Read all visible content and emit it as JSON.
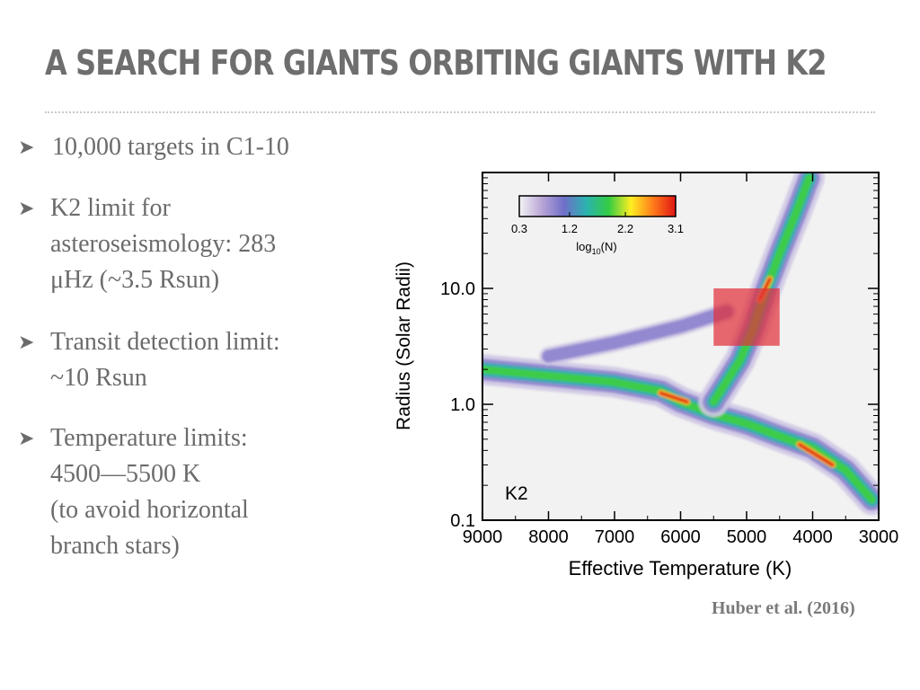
{
  "slide": {
    "title": "A SEARCH FOR GIANTS ORBITING GIANTS WITH K2",
    "bullets": {
      "main": "10,000 targets in C1-10",
      "sub": [
        {
          "lines": [
            "K2 limit for",
            "asteroseismology: 283",
            "μHz (~3.5 Rsun)"
          ]
        },
        {
          "lines": [
            "Transit detection limit:",
            "~10 Rsun"
          ]
        },
        {
          "lines": [
            "Temperature limits:",
            "4500—5500 K",
            "(to avoid horizontal",
            "branch stars)"
          ]
        }
      ]
    },
    "citation": "Huber et al. (2016)"
  },
  "chart_data": {
    "type": "heatmap",
    "title": "",
    "xlabel": "Effective Temperature (K)",
    "ylabel": "Radius (Solar Radii)",
    "x_ticks": [
      9000,
      8000,
      7000,
      6000,
      5000,
      4000,
      3000
    ],
    "x_tick_labels": [
      "9000",
      "8000",
      "7000",
      "6000",
      "5000",
      "4000",
      "3000"
    ],
    "xlim": [
      9000,
      3000
    ],
    "x_reversed": true,
    "y_ticks": [
      0.1,
      1.0,
      10.0
    ],
    "y_tick_labels": [
      "0.1",
      "1.0",
      "10.0"
    ],
    "ylim": [
      0.1,
      100
    ],
    "y_scale": "log",
    "inset_label": "K2",
    "colorbar": {
      "label": "log10(N)",
      "label_base": "log",
      "label_sub": "10",
      "label_tail": "(N)",
      "ticks": [
        0.3,
        1.2,
        2.2,
        3.1
      ],
      "tick_labels": [
        "0.3",
        "1.2",
        "2.2",
        "3.1"
      ],
      "colors": [
        "#f4f4f4",
        "#b9a6d6",
        "#6f6fc8",
        "#2bb3b0",
        "#33cc44",
        "#ffee22",
        "#ff7a1a",
        "#e01515"
      ]
    },
    "highlight_box": {
      "teff_range": [
        4500,
        5500
      ],
      "radius_range": [
        3.2,
        10.0
      ],
      "color": "#e0303a"
    },
    "density_ridges": [
      {
        "name": "main sequence",
        "points": [
          [
            9000,
            2.0
          ],
          [
            7000,
            1.55
          ],
          [
            6300,
            1.3
          ],
          [
            6000,
            1.05
          ],
          [
            5500,
            0.82
          ],
          [
            5000,
            0.68
          ],
          [
            4500,
            0.53
          ],
          [
            4000,
            0.42
          ],
          [
            3500,
            0.27
          ],
          [
            3100,
            0.15
          ]
        ],
        "peak": [
          [
            6300,
            1.25
          ],
          [
            5900,
            1.05
          ],
          [
            4200,
            0.45
          ],
          [
            3700,
            0.3
          ]
        ]
      },
      {
        "name": "red giant branch",
        "points": [
          [
            5500,
            1.05
          ],
          [
            5100,
            2.4
          ],
          [
            4900,
            4.5
          ],
          [
            4700,
            10
          ],
          [
            4500,
            20
          ],
          [
            4250,
            45
          ],
          [
            4050,
            90
          ]
        ],
        "peak": [
          [
            4800,
            8
          ],
          [
            4650,
            12
          ]
        ]
      },
      {
        "name": "subgiant wedge",
        "points": [
          [
            8000,
            2.6
          ],
          [
            7000,
            3.4
          ],
          [
            6000,
            4.7
          ],
          [
            5300,
            6.3
          ]
        ],
        "peak": []
      }
    ]
  }
}
